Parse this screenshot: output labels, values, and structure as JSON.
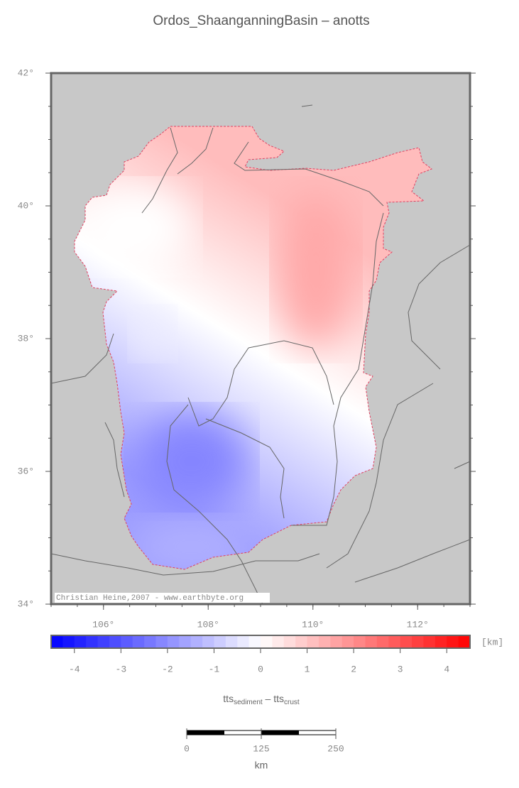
{
  "map": {
    "title": "Ordos_ShaanganningBasin – anotts",
    "credit": "Christian Heine,2007 - www.earthbyte.org",
    "lat_range": [
      34,
      42
    ],
    "lat_ticks": [
      {
        "value": 42,
        "label": "42°"
      },
      {
        "value": 40,
        "label": "40°"
      },
      {
        "value": 38,
        "label": "38°"
      },
      {
        "value": 36,
        "label": "36°"
      },
      {
        "value": 34,
        "label": "34°"
      }
    ],
    "lon_range": [
      105,
      113
    ],
    "lon_ticks": [
      {
        "value": 106,
        "label": "106°"
      },
      {
        "value": 108,
        "label": "108°"
      },
      {
        "value": 110,
        "label": "110°"
      },
      {
        "value": 112,
        "label": "112°"
      }
    ],
    "colorbar": {
      "range": [
        -4.5,
        4.5
      ],
      "ticks": [
        -4,
        -3,
        -2,
        -1,
        0,
        1,
        2,
        3,
        4
      ],
      "unit": "[km]",
      "label": {
        "main1": "tts",
        "sub1": "sediment",
        "main2": " – tts",
        "sub2": "crust"
      }
    },
    "scale_bar": {
      "ticks": [
        0,
        125,
        250
      ],
      "unit": "km"
    }
  }
}
